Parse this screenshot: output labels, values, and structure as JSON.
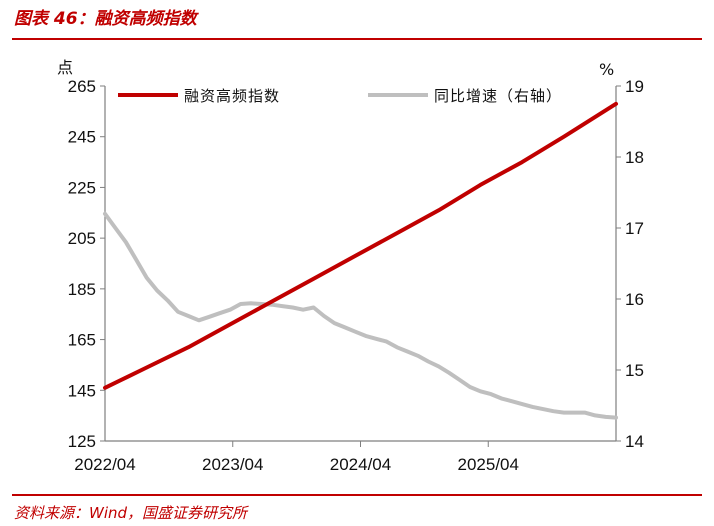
{
  "header": {
    "title": "图表 46：融资高频指数"
  },
  "footer": {
    "source": "资料来源：Wind，国盛证券研究所"
  },
  "colors": {
    "index": "#c00000",
    "yoy": "#bfbfbf",
    "accent": "#c00000",
    "axis": "#7f7f7f"
  },
  "chart_data": {
    "type": "line",
    "title": "融资高频指数",
    "left_unit": "点",
    "right_unit": "%",
    "legend_position": "top",
    "grid": false,
    "x_tick_labels": [
      "2022/04",
      "2023/04",
      "2024/04",
      "2025/04"
    ],
    "x_range": [
      0,
      49
    ],
    "y_left": {
      "ticks": [
        "125",
        "145",
        "165",
        "185",
        "205",
        "225",
        "245",
        "265"
      ],
      "range": [
        125,
        265
      ]
    },
    "y_right": {
      "ticks": [
        "14",
        "15",
        "16",
        "17",
        "18",
        "19"
      ],
      "range": [
        14,
        19
      ]
    },
    "series": [
      {
        "name": "融资高频指数",
        "axis": "left",
        "x": [
          0,
          4,
          8,
          12,
          16,
          20,
          24,
          28,
          32,
          36,
          40,
          44,
          49
        ],
        "values": [
          146,
          154,
          162,
          171,
          180,
          189,
          198,
          207,
          216,
          226,
          235,
          245,
          258
        ]
      },
      {
        "name": "同比增速（右轴）",
        "axis": "right",
        "x": [
          0,
          1,
          2,
          3,
          4,
          5,
          6,
          7,
          8,
          9,
          10,
          11,
          12,
          13,
          14,
          15,
          16,
          17,
          18,
          19,
          20,
          21,
          22,
          23,
          24,
          25,
          26,
          27,
          28,
          29,
          30,
          31,
          32,
          33,
          34,
          35,
          36,
          37,
          38,
          39,
          40,
          41,
          42,
          43,
          44,
          45,
          46,
          47,
          48,
          49
        ],
        "values": [
          17.2,
          17.0,
          16.8,
          16.55,
          16.3,
          16.12,
          15.98,
          15.82,
          15.76,
          15.7,
          15.75,
          15.8,
          15.85,
          15.93,
          15.94,
          15.93,
          15.92,
          15.9,
          15.88,
          15.85,
          15.88,
          15.76,
          15.66,
          15.6,
          15.54,
          15.48,
          15.44,
          15.4,
          15.32,
          15.26,
          15.2,
          15.12,
          15.05,
          14.96,
          14.86,
          14.76,
          14.7,
          14.66,
          14.6,
          14.56,
          14.52,
          14.48,
          14.45,
          14.42,
          14.4,
          14.4,
          14.4,
          14.36,
          14.34,
          14.33
        ]
      }
    ]
  }
}
